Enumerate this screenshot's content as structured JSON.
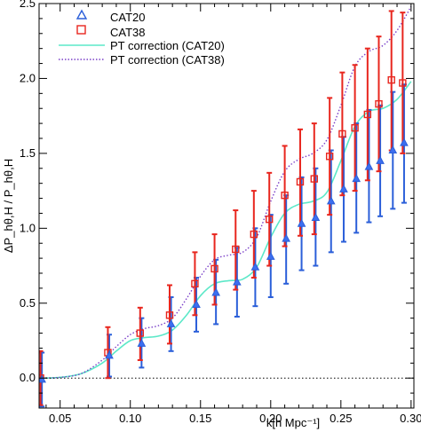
{
  "chart_data": {
    "type": "scatter",
    "xlabel": "k[h Mpc⁻¹]",
    "ylabel": "ΔP_hθ,H / P_hθ,H",
    "xlim": [
      0.035,
      0.302
    ],
    "ylim": [
      -0.2,
      2.5
    ],
    "x_ticks": [
      0.05,
      0.1,
      0.15,
      0.2,
      0.25,
      0.3
    ],
    "x_tick_labels": [
      "0.05",
      "0.10",
      "0.15",
      "0.20",
      "0.25",
      "0.30"
    ],
    "y_ticks": [
      0.0,
      0.5,
      1.0,
      1.5,
      2.0,
      2.5
    ],
    "y_tick_labels": [
      "0.0",
      "0.5",
      "1.0",
      "1.5",
      "2.0",
      "2.5"
    ],
    "reference_line_y": 0.0,
    "legend_position": "top-left",
    "colors": {
      "cat20": "#2b5fd9",
      "cat38": "#e8261e",
      "pt20": "#5ce8c8",
      "pt38": "#7a3fc8"
    },
    "series": [
      {
        "name": "CAT20",
        "marker": "triangle",
        "points": [
          {
            "x": 0.037,
            "y": -0.01,
            "lo": -0.19,
            "hi": 0.17
          },
          {
            "x": 0.085,
            "y": 0.15,
            "lo": 0.01,
            "hi": 0.29
          },
          {
            "x": 0.108,
            "y": 0.23,
            "lo": 0.07,
            "hi": 0.4
          },
          {
            "x": 0.129,
            "y": 0.36,
            "lo": 0.18,
            "hi": 0.54
          },
          {
            "x": 0.147,
            "y": 0.49,
            "lo": 0.31,
            "hi": 0.67
          },
          {
            "x": 0.161,
            "y": 0.57,
            "lo": 0.36,
            "hi": 0.79
          },
          {
            "x": 0.176,
            "y": 0.64,
            "lo": 0.41,
            "hi": 0.87
          },
          {
            "x": 0.189,
            "y": 0.74,
            "lo": 0.48,
            "hi": 1.0
          },
          {
            "x": 0.2,
            "y": 0.81,
            "lo": 0.54,
            "hi": 1.09
          },
          {
            "x": 0.211,
            "y": 0.93,
            "lo": 0.63,
            "hi": 1.22
          },
          {
            "x": 0.222,
            "y": 1.03,
            "lo": 0.72,
            "hi": 1.34
          },
          {
            "x": 0.232,
            "y": 1.07,
            "lo": 0.75,
            "hi": 1.4
          },
          {
            "x": 0.243,
            "y": 1.18,
            "lo": 0.84,
            "hi": 1.52
          },
          {
            "x": 0.252,
            "y": 1.26,
            "lo": 0.91,
            "hi": 1.61
          },
          {
            "x": 0.261,
            "y": 1.33,
            "lo": 0.97,
            "hi": 1.7
          },
          {
            "x": 0.27,
            "y": 1.41,
            "lo": 1.04,
            "hi": 1.79
          },
          {
            "x": 0.278,
            "y": 1.45,
            "lo": 1.08,
            "hi": 1.82
          },
          {
            "x": 0.287,
            "y": 1.52,
            "lo": 1.13,
            "hi": 1.91
          },
          {
            "x": 0.295,
            "y": 1.57,
            "lo": 1.17,
            "hi": 1.96
          }
        ]
      },
      {
        "name": "CAT38",
        "marker": "square",
        "points": [
          {
            "x": 0.036,
            "y": 0.0,
            "lo": -0.18,
            "hi": 0.18
          },
          {
            "x": 0.084,
            "y": 0.17,
            "lo": 0.0,
            "hi": 0.34
          },
          {
            "x": 0.107,
            "y": 0.3,
            "lo": 0.12,
            "hi": 0.47
          },
          {
            "x": 0.128,
            "y": 0.42,
            "lo": 0.23,
            "hi": 0.62
          },
          {
            "x": 0.146,
            "y": 0.63,
            "lo": 0.42,
            "hi": 0.84
          },
          {
            "x": 0.16,
            "y": 0.73,
            "lo": 0.49,
            "hi": 0.96
          },
          {
            "x": 0.175,
            "y": 0.86,
            "lo": 0.59,
            "hi": 1.12
          },
          {
            "x": 0.188,
            "y": 0.96,
            "lo": 0.67,
            "hi": 1.25
          },
          {
            "x": 0.199,
            "y": 1.06,
            "lo": 0.75,
            "hi": 1.37
          },
          {
            "x": 0.21,
            "y": 1.22,
            "lo": 0.88,
            "hi": 1.55
          },
          {
            "x": 0.221,
            "y": 1.31,
            "lo": 0.95,
            "hi": 1.66
          },
          {
            "x": 0.231,
            "y": 1.33,
            "lo": 0.96,
            "hi": 1.7
          },
          {
            "x": 0.242,
            "y": 1.48,
            "lo": 1.09,
            "hi": 1.87
          },
          {
            "x": 0.251,
            "y": 1.63,
            "lo": 1.22,
            "hi": 2.04
          },
          {
            "x": 0.26,
            "y": 1.67,
            "lo": 1.25,
            "hi": 2.09
          },
          {
            "x": 0.269,
            "y": 1.76,
            "lo": 1.32,
            "hi": 2.2
          },
          {
            "x": 0.277,
            "y": 1.83,
            "lo": 1.38,
            "hi": 2.28
          },
          {
            "x": 0.286,
            "y": 1.99,
            "lo": 1.52,
            "hi": 2.45
          },
          {
            "x": 0.294,
            "y": 1.97,
            "lo": 1.5,
            "hi": 2.44
          }
        ]
      },
      {
        "name": "PT correction (CAT20)",
        "style": "solid",
        "curve": [
          [
            0.035,
            0.0
          ],
          [
            0.05,
            0.005
          ],
          [
            0.065,
            0.03
          ],
          [
            0.08,
            0.1
          ],
          [
            0.09,
            0.18
          ],
          [
            0.1,
            0.25
          ],
          [
            0.11,
            0.27
          ],
          [
            0.12,
            0.28
          ],
          [
            0.13,
            0.32
          ],
          [
            0.14,
            0.42
          ],
          [
            0.15,
            0.55
          ],
          [
            0.16,
            0.63
          ],
          [
            0.17,
            0.65
          ],
          [
            0.18,
            0.66
          ],
          [
            0.19,
            0.74
          ],
          [
            0.2,
            0.94
          ],
          [
            0.21,
            1.1
          ],
          [
            0.22,
            1.16
          ],
          [
            0.23,
            1.18
          ],
          [
            0.24,
            1.24
          ],
          [
            0.25,
            1.45
          ],
          [
            0.26,
            1.68
          ],
          [
            0.27,
            1.78
          ],
          [
            0.28,
            1.8
          ],
          [
            0.29,
            1.86
          ],
          [
            0.3,
            1.98
          ]
        ]
      },
      {
        "name": "PT correction (CAT38)",
        "style": "dotted",
        "curve": [
          [
            0.035,
            0.0
          ],
          [
            0.05,
            0.005
          ],
          [
            0.065,
            0.03
          ],
          [
            0.08,
            0.12
          ],
          [
            0.09,
            0.21
          ],
          [
            0.1,
            0.29
          ],
          [
            0.11,
            0.33
          ],
          [
            0.12,
            0.35
          ],
          [
            0.13,
            0.4
          ],
          [
            0.14,
            0.53
          ],
          [
            0.15,
            0.68
          ],
          [
            0.16,
            0.79
          ],
          [
            0.17,
            0.82
          ],
          [
            0.18,
            0.84
          ],
          [
            0.19,
            0.94
          ],
          [
            0.2,
            1.18
          ],
          [
            0.21,
            1.38
          ],
          [
            0.22,
            1.46
          ],
          [
            0.23,
            1.5
          ],
          [
            0.24,
            1.59
          ],
          [
            0.25,
            1.82
          ],
          [
            0.26,
            2.08
          ],
          [
            0.27,
            2.18
          ],
          [
            0.28,
            2.22
          ],
          [
            0.29,
            2.32
          ],
          [
            0.3,
            2.48
          ]
        ]
      }
    ]
  }
}
